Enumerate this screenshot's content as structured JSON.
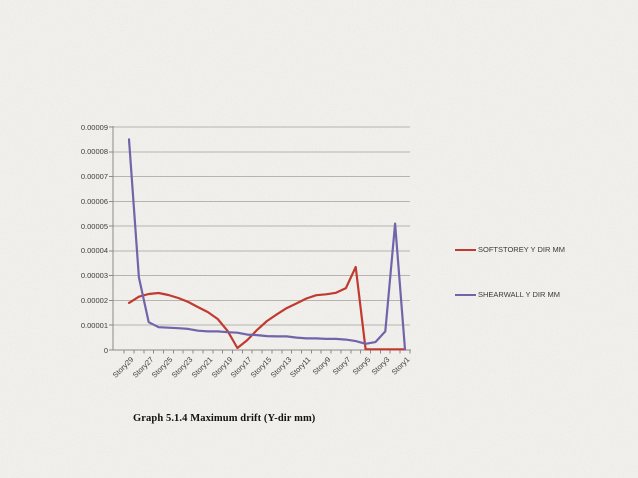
{
  "slide": {
    "caption": "Graph 5.1.4 Maximum drift (Y-dir mm)"
  },
  "chart_data": {
    "type": "line",
    "title": "",
    "xlabel": "",
    "ylabel": "",
    "grid": "horizontal",
    "legend_position": "right",
    "ylim": [
      0,
      9e-05
    ],
    "ytick_interval": 1e-05,
    "ytick_labels": [
      "0",
      "0.00001",
      "0.00002",
      "0.00003",
      "0.00004",
      "0.00005",
      "0.00006",
      "0.00007",
      "0.00008",
      "0.00009"
    ],
    "categories": [
      "Story29",
      "Story28",
      "Story27",
      "Story26",
      "Story25",
      "Story24",
      "Story23",
      "Story22",
      "Story21",
      "Story20",
      "Story19",
      "Story18",
      "Story17",
      "Story16",
      "Story15",
      "Story14",
      "Story13",
      "Story12",
      "Story11",
      "Story10",
      "Story9",
      "Story8",
      "Story7",
      "Story6",
      "Story5",
      "Story4",
      "Story3",
      "Story2",
      "Story1"
    ],
    "x_tick_labels_shown": [
      "Story29",
      "Story27",
      "Story25",
      "Story23",
      "Story21",
      "Story19",
      "Story17",
      "Story15",
      "Story13",
      "Story11",
      "Story9",
      "Story7",
      "Story5",
      "Story3",
      "Story1"
    ],
    "series": [
      {
        "id": "softstorey",
        "name": "SOFTSTOREY Y DIR MM",
        "color": "#c13a30",
        "values": [
          1.9e-05,
          2.15e-05,
          2.26e-05,
          2.3e-05,
          2.22e-05,
          2.1e-05,
          1.94e-05,
          1.73e-05,
          1.53e-05,
          1.25e-05,
          7.7e-06,
          8e-07,
          4e-06,
          8.1e-06,
          1.17e-05,
          1.44e-05,
          1.69e-05,
          1.88e-05,
          2.08e-05,
          2.21e-05,
          2.25e-05,
          2.31e-05,
          2.5e-05,
          3.35e-05,
          3e-07,
          3e-07,
          3e-07,
          3e-07,
          3e-07
        ]
      },
      {
        "id": "shearwall",
        "name": "SHEARWALL Y DIR MM",
        "color": "#7263ab",
        "values": [
          8.5e-05,
          2.93e-05,
          1.12e-05,
          9.2e-06,
          9e-06,
          8.8e-06,
          8.5e-06,
          7.8e-06,
          7.5e-06,
          7.5e-06,
          7.2e-06,
          7e-06,
          6.2e-06,
          6e-06,
          5.6e-06,
          5.5e-06,
          5.5e-06,
          5e-06,
          4.7e-06,
          4.7e-06,
          4.5e-06,
          4.5e-06,
          4.2e-06,
          3.6e-06,
          2.5e-06,
          3.2e-06,
          7.5e-06,
          5.1e-05,
          2e-07
        ]
      }
    ],
    "axis_color": "#8e8b85",
    "gridline_color": "#b8b4ad"
  }
}
